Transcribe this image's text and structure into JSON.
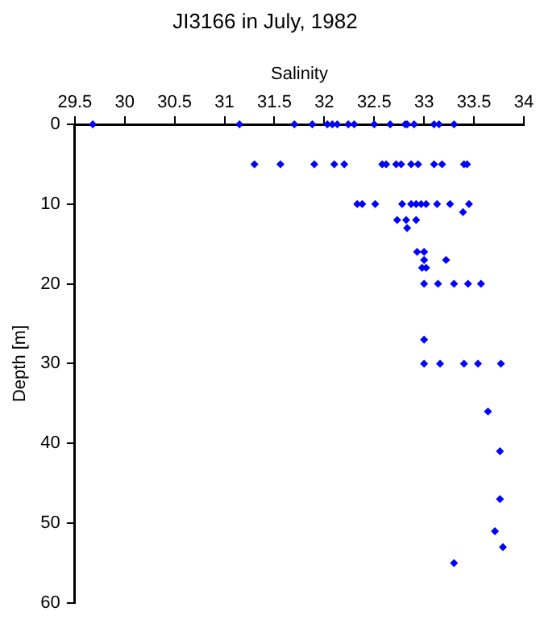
{
  "chart_data": {
    "type": "scatter",
    "title": "JI3166 in July, 1982",
    "xlabel": "Salinity",
    "ylabel": "Depth [m]",
    "series": [
      {
        "color": "#0000ff",
        "x": [
          29.68,
          31.15,
          31.7,
          31.88,
          32.03,
          32.08,
          32.13,
          32.24,
          32.3,
          32.5,
          32.66,
          32.81,
          32.83,
          32.9,
          33.1,
          33.15,
          33.3,
          31.3,
          31.56,
          31.9,
          32.1,
          32.2,
          32.58,
          32.62,
          32.72,
          32.77,
          32.87,
          32.94,
          33.1,
          33.18,
          33.4,
          33.43,
          32.33,
          32.38,
          32.51,
          32.78,
          32.87,
          32.92,
          32.97,
          33.02,
          33.13,
          33.26,
          33.45,
          33.39,
          32.73,
          32.82,
          32.92,
          32.83,
          32.93,
          33.0,
          33.0,
          33.22,
          32.98,
          33.02,
          33.0,
          33.14,
          33.3,
          33.44,
          33.57,
          33.0,
          33.0,
          33.16,
          33.4,
          33.54,
          33.77,
          33.64,
          33.76,
          33.76,
          33.71,
          33.79,
          33.3
        ],
        "values": [
          0,
          0,
          0,
          0,
          0,
          0,
          0,
          0,
          0,
          0,
          0,
          0,
          0,
          0,
          0,
          0,
          0,
          5,
          5,
          5,
          5,
          5,
          5,
          5,
          5,
          5,
          5,
          5,
          5,
          5,
          5,
          5,
          10,
          10,
          10,
          10,
          10,
          10,
          10,
          10,
          10,
          10,
          10,
          11,
          12,
          12,
          12,
          13,
          16,
          16,
          17,
          17,
          18,
          18,
          20,
          20,
          20,
          20,
          20,
          27,
          30,
          30,
          30,
          30,
          30,
          36,
          41,
          47,
          51,
          53,
          55
        ]
      }
    ],
    "xlim": [
      29.5,
      34
    ],
    "xticks": [
      29.5,
      30,
      30.5,
      31,
      31.5,
      32,
      32.5,
      33,
      33.5,
      34
    ],
    "ylim": [
      60,
      0
    ],
    "yticks": [
      0,
      10,
      20,
      30,
      40,
      50,
      60
    ],
    "grid": false,
    "legend": false,
    "marker": "diamond"
  }
}
